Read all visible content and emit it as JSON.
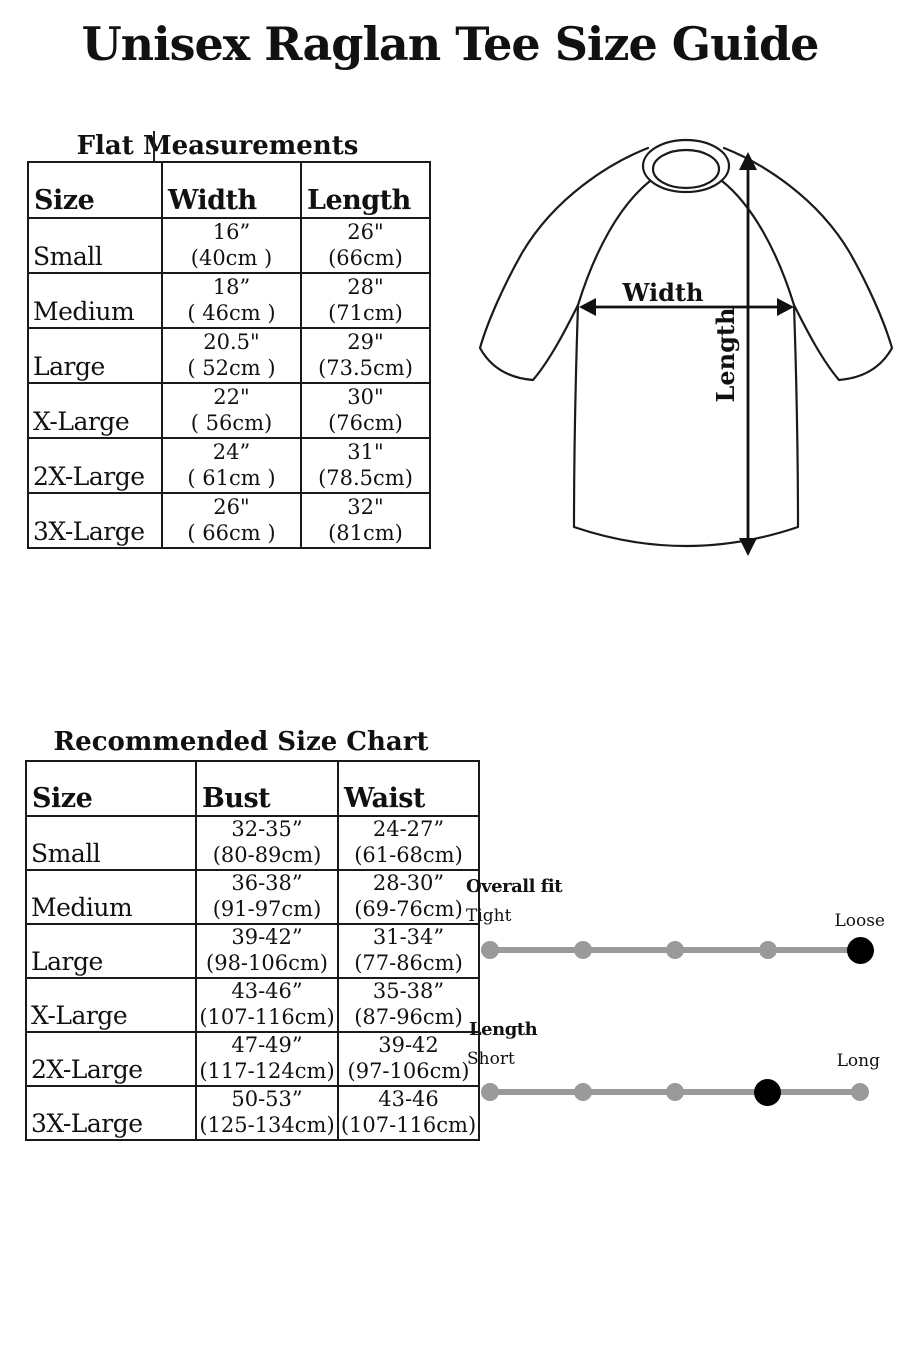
{
  "title": "Unisex Raglan Tee Size Guide",
  "flat_table": {
    "heading": "Flat Measurements",
    "columns": [
      "Size",
      "Width",
      "Length"
    ],
    "rows": [
      {
        "size": "Small",
        "win": "16”",
        "wcm": "(40cm )",
        "lin": "26\"",
        "lcm": "(66cm)"
      },
      {
        "size": "Medium",
        "win": "18”",
        "wcm": "( 46cm )",
        "lin": "28\"",
        "lcm": "(71cm)"
      },
      {
        "size": "Large",
        "win": "20.5\"",
        "wcm": "( 52cm )",
        "lin": "29\"",
        "lcm": "(73.5cm)"
      },
      {
        "size": "X-Large",
        "win": "22\"",
        "wcm": "( 56cm)",
        "lin": "30\"",
        "lcm": "(76cm)"
      },
      {
        "size": "2X-Large",
        "win": "24”",
        "wcm": "( 61cm )",
        "lin": "31\"",
        "lcm": "(78.5cm)"
      },
      {
        "size": "3X-Large",
        "win": "26\"",
        "wcm": "( 66cm )",
        "lin": "32\"",
        "lcm": "(81cm)"
      }
    ]
  },
  "diagram": {
    "width_label": "Width",
    "length_label": "Length"
  },
  "size_chart": {
    "heading": "Recommended Size Chart",
    "columns": [
      "Size",
      "Bust",
      "Waist"
    ],
    "rows": [
      {
        "size": "Small",
        "bin": "32-35”",
        "bcm": "(80-89cm)",
        "win": "24-27”",
        "wcm": "(61-68cm)"
      },
      {
        "size": "Medium",
        "bin": "36-38”",
        "bcm": "(91-97cm)",
        "win": "28-30”",
        "wcm": "(69-76cm)"
      },
      {
        "size": "Large",
        "bin": "39-42”",
        "bcm": "(98-106cm)",
        "win": "31-34”",
        "wcm": "(77-86cm)"
      },
      {
        "size": "X-Large",
        "bin": "43-46”",
        "bcm": "(107-116cm)",
        "win": "35-38”",
        "wcm": "(87-96cm)"
      },
      {
        "size": "2X-Large",
        "bin": "47-49”",
        "bcm": "(117-124cm)",
        "win": "39-42",
        "wcm": "(97-106cm)"
      },
      {
        "size": "3X-Large",
        "bin": "50-53”",
        "bcm": "(125-134cm)",
        "win": "43-46",
        "wcm": "(107-116cm)"
      }
    ]
  },
  "fit_sliders": {
    "overall": {
      "label": "Overall fit",
      "left": "Tight",
      "right": "Loose",
      "dots": 5,
      "selected": 5
    },
    "length": {
      "label": "Length",
      "left": "Short",
      "right": "Long",
      "dots": 5,
      "selected": 4
    }
  },
  "colors": {
    "text": "#111111",
    "table_border": "#1a1a1a",
    "slider_track": "#9a9a9a",
    "slider_dot": "#9a9a9a",
    "slider_selected_dot": "#000000"
  }
}
